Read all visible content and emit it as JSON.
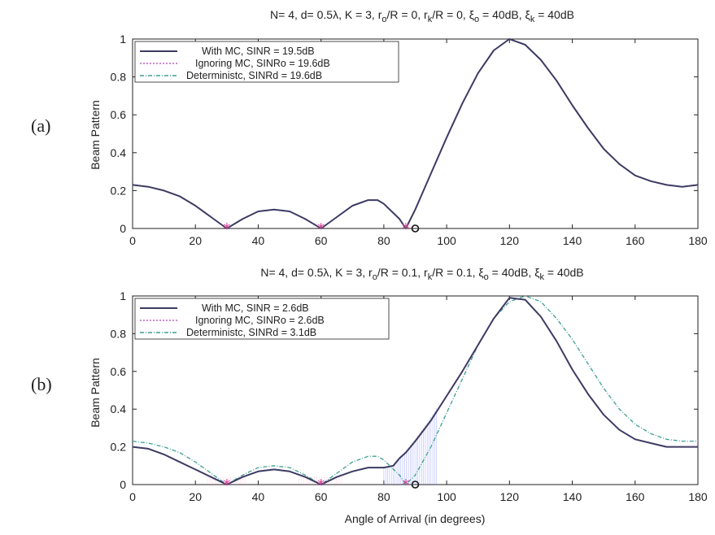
{
  "colors": {
    "with_mc": "#3d3b63",
    "ignoring_mc": "#c15fc8",
    "deterministic": "#3f9f92",
    "null_marker": "#e0459a",
    "shade": "#5566ff",
    "pink_shade": "#ff7aaa"
  },
  "chart_data": [
    {
      "type": "line",
      "panel_label": "(a)",
      "title": "N= 4, d= 0.5λ, K = 3, r_o/R = 0, r_k/R = 0, ξ_o = 40dB, ξ_k = 40dB",
      "xlabel": "",
      "ylabel": "Beam Pattern",
      "xlim": [
        0,
        180
      ],
      "ylim": [
        0,
        1
      ],
      "xticks": [
        "0",
        "20",
        "40",
        "60",
        "80",
        "100",
        "120",
        "140",
        "160",
        "180"
      ],
      "yticks": [
        "0",
        "0.2",
        "0.4",
        "0.6",
        "0.8",
        "1"
      ],
      "legend_position": "top-left",
      "series": [
        {
          "name": "With MC, SINR = 19.5dB",
          "key": "with_mc",
          "x": [
            0,
            5,
            10,
            15,
            20,
            25,
            30,
            35,
            40,
            45,
            50,
            55,
            60,
            65,
            70,
            75,
            78,
            80,
            85,
            87,
            90,
            95,
            100,
            105,
            110,
            115,
            120,
            125,
            130,
            135,
            140,
            145,
            150,
            155,
            160,
            165,
            170,
            175,
            180
          ],
          "y": [
            0.23,
            0.22,
            0.2,
            0.17,
            0.12,
            0.06,
            0,
            0.05,
            0.09,
            0.1,
            0.09,
            0.05,
            0,
            0.06,
            0.12,
            0.15,
            0.15,
            0.13,
            0.05,
            0,
            0.1,
            0.29,
            0.48,
            0.66,
            0.82,
            0.94,
            1.0,
            0.97,
            0.89,
            0.78,
            0.65,
            0.53,
            0.42,
            0.34,
            0.28,
            0.25,
            0.23,
            0.22,
            0.23
          ]
        },
        {
          "name": "Ignoring MC, SINRo = 19.6dB",
          "key": "ignoring_mc",
          "x": [
            0,
            5,
            10,
            15,
            20,
            25,
            30,
            35,
            40,
            45,
            50,
            55,
            60,
            65,
            70,
            75,
            78,
            80,
            85,
            87,
            90,
            95,
            100,
            105,
            110,
            115,
            120,
            125,
            130,
            135,
            140,
            145,
            150,
            155,
            160,
            165,
            170,
            175,
            180
          ],
          "y": [
            0.23,
            0.22,
            0.2,
            0.17,
            0.12,
            0.06,
            0,
            0.05,
            0.09,
            0.1,
            0.09,
            0.05,
            0,
            0.06,
            0.12,
            0.15,
            0.15,
            0.13,
            0.05,
            0,
            0.1,
            0.29,
            0.48,
            0.66,
            0.82,
            0.94,
            1.0,
            0.97,
            0.89,
            0.78,
            0.65,
            0.53,
            0.42,
            0.34,
            0.28,
            0.25,
            0.23,
            0.22,
            0.23
          ]
        },
        {
          "name": "Deterministc, SINRd = 19.6dB",
          "key": "deterministic",
          "x": [
            0,
            5,
            10,
            15,
            20,
            25,
            30,
            35,
            40,
            45,
            50,
            55,
            60,
            65,
            70,
            75,
            78,
            80,
            85,
            87,
            90,
            95,
            100,
            105,
            110,
            115,
            120,
            125,
            130,
            135,
            140,
            145,
            150,
            155,
            160,
            165,
            170,
            175,
            180
          ],
          "y": [
            0.23,
            0.22,
            0.2,
            0.17,
            0.12,
            0.06,
            0,
            0.05,
            0.09,
            0.1,
            0.09,
            0.05,
            0,
            0.06,
            0.12,
            0.15,
            0.15,
            0.13,
            0.05,
            0,
            0.1,
            0.29,
            0.48,
            0.66,
            0.82,
            0.94,
            1.0,
            0.97,
            0.89,
            0.78,
            0.65,
            0.53,
            0.42,
            0.34,
            0.28,
            0.25,
            0.23,
            0.22,
            0.23
          ]
        }
      ],
      "null_markers_x": [
        30,
        60,
        87
      ],
      "circle_marker_x": 90,
      "shaded": false
    },
    {
      "type": "line",
      "panel_label": "(b)",
      "title": "N= 4, d= 0.5λ, K = 3, r_o/R = 0.1, r_k/R = 0.1, ξ_o = 40dB, ξ_k = 40dB",
      "xlabel": "Angle of Arrival (in degrees)",
      "ylabel": "Beam Pattern",
      "xlim": [
        0,
        180
      ],
      "ylim": [
        0,
        1
      ],
      "xticks": [
        "0",
        "20",
        "40",
        "60",
        "80",
        "100",
        "120",
        "140",
        "160",
        "180"
      ],
      "yticks": [
        "0",
        "0.2",
        "0.4",
        "0.6",
        "0.8",
        "1"
      ],
      "legend_position": "top-left",
      "series": [
        {
          "name": "With MC, SINR = 2.6dB",
          "key": "with_mc",
          "x": [
            0,
            5,
            10,
            15,
            20,
            25,
            30,
            35,
            40,
            45,
            50,
            55,
            60,
            65,
            70,
            75,
            80,
            83,
            85,
            87,
            90,
            95,
            100,
            105,
            110,
            115,
            120,
            125,
            130,
            135,
            140,
            145,
            150,
            155,
            160,
            165,
            170,
            175,
            180
          ],
          "y": [
            0.2,
            0.19,
            0.16,
            0.12,
            0.08,
            0.04,
            0,
            0.04,
            0.07,
            0.08,
            0.07,
            0.04,
            0,
            0.04,
            0.07,
            0.09,
            0.09,
            0.1,
            0.14,
            0.17,
            0.23,
            0.34,
            0.47,
            0.6,
            0.74,
            0.88,
            0.99,
            0.98,
            0.89,
            0.76,
            0.61,
            0.48,
            0.37,
            0.29,
            0.24,
            0.22,
            0.2,
            0.2,
            0.2
          ]
        },
        {
          "name": "Ignoring MC, SINRo = 2.6dB",
          "key": "ignoring_mc",
          "x": [
            0,
            5,
            10,
            15,
            20,
            25,
            30,
            35,
            40,
            45,
            50,
            55,
            60,
            65,
            70,
            75,
            80,
            83,
            85,
            87,
            90,
            95,
            100,
            105,
            110,
            115,
            120,
            125,
            130,
            135,
            140,
            145,
            150,
            155,
            160,
            165,
            170,
            175,
            180
          ],
          "y": [
            0.2,
            0.19,
            0.16,
            0.12,
            0.08,
            0.04,
            0,
            0.04,
            0.07,
            0.08,
            0.07,
            0.04,
            0,
            0.04,
            0.07,
            0.09,
            0.09,
            0.1,
            0.14,
            0.17,
            0.23,
            0.34,
            0.47,
            0.6,
            0.74,
            0.88,
            0.99,
            0.98,
            0.89,
            0.76,
            0.61,
            0.48,
            0.37,
            0.29,
            0.24,
            0.22,
            0.2,
            0.2,
            0.2
          ]
        },
        {
          "name": "Deterministc, SINRd = 3.1dB",
          "key": "deterministic",
          "x": [
            0,
            5,
            10,
            15,
            20,
            25,
            30,
            35,
            40,
            45,
            50,
            55,
            60,
            65,
            70,
            75,
            78,
            80,
            85,
            87,
            90,
            95,
            100,
            105,
            110,
            115,
            120,
            125,
            130,
            135,
            140,
            145,
            150,
            155,
            160,
            165,
            170,
            175,
            180
          ],
          "y": [
            0.23,
            0.22,
            0.2,
            0.17,
            0.12,
            0.06,
            0,
            0.05,
            0.09,
            0.1,
            0.09,
            0.05,
            0,
            0.06,
            0.12,
            0.15,
            0.15,
            0.13,
            0.05,
            0,
            0.05,
            0.2,
            0.38,
            0.56,
            0.74,
            0.88,
            0.97,
            1.0,
            0.97,
            0.88,
            0.77,
            0.64,
            0.51,
            0.4,
            0.32,
            0.27,
            0.24,
            0.23,
            0.23
          ]
        }
      ],
      "null_markers_x": [
        30,
        60,
        87
      ],
      "circle_marker_x": 90,
      "shaded": true
    }
  ]
}
